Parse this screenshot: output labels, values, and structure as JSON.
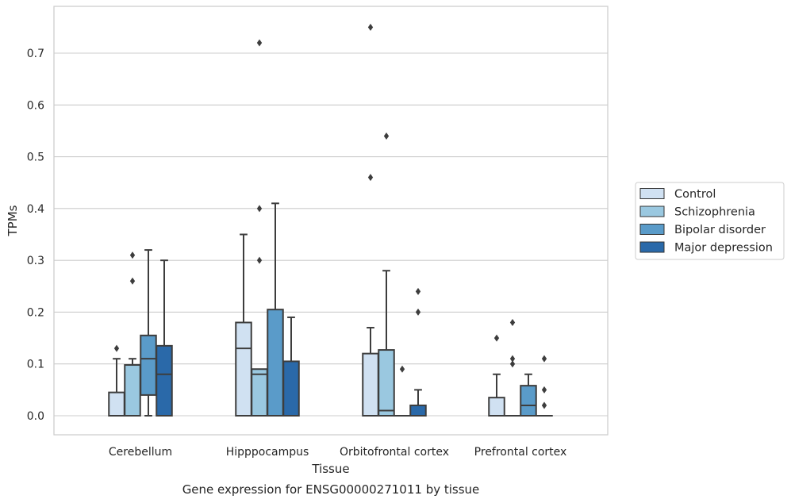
{
  "chart_data": {
    "type": "boxplot",
    "title": "",
    "caption": "Gene expression for ENSG00000271011 by tissue",
    "xlabel": "Tissue",
    "ylabel": "TPMs",
    "ylim": [
      -0.037,
      0.79
    ],
    "yticks": [
      "0.0",
      "0.1",
      "0.2",
      "0.3",
      "0.4",
      "0.5",
      "0.6",
      "0.7"
    ],
    "grid": "horizontal",
    "legend_position": "right",
    "categories": [
      "Cerebellum",
      "Hipppocampus",
      "Orbitofrontal cortex",
      "Prefrontal cortex"
    ],
    "series": [
      {
        "name": "Control",
        "color": "#d0e1f2",
        "boxes": [
          {
            "whisker_low": 0,
            "q1": 0,
            "median": 0,
            "q3": 0.045,
            "whisker_high": 0.11,
            "outliers": [
              0.13
            ]
          },
          {
            "whisker_low": 0,
            "q1": 0,
            "median": 0.13,
            "q3": 0.18,
            "whisker_high": 0.35,
            "outliers": []
          },
          {
            "whisker_low": 0,
            "q1": 0,
            "median": 0,
            "q3": 0.12,
            "whisker_high": 0.17,
            "outliers": [
              0.46,
              0.75
            ]
          },
          {
            "whisker_low": 0,
            "q1": 0,
            "median": 0,
            "q3": 0.035,
            "whisker_high": 0.08,
            "outliers": [
              0.15
            ]
          }
        ]
      },
      {
        "name": "Schizophrenia",
        "color": "#9ac8e0",
        "boxes": [
          {
            "whisker_low": 0,
            "q1": 0,
            "median": 0,
            "q3": 0.098,
            "whisker_high": 0.11,
            "outliers": [
              0.26,
              0.31
            ]
          },
          {
            "whisker_low": 0,
            "q1": 0,
            "median": 0.08,
            "q3": 0.09,
            "whisker_high": 0.09,
            "outliers": [
              0.3,
              0.4,
              0.72
            ]
          },
          {
            "whisker_low": 0,
            "q1": 0,
            "median": 0.01,
            "q3": 0.127,
            "whisker_high": 0.28,
            "outliers": [
              0.54
            ]
          },
          {
            "whisker_low": 0,
            "q1": 0,
            "median": 0,
            "q3": 0,
            "whisker_high": 0,
            "outliers": [
              0.1,
              0.11,
              0.18
            ]
          }
        ]
      },
      {
        "name": "Bipolar disorder",
        "color": "#5a9bc9",
        "boxes": [
          {
            "whisker_low": 0,
            "q1": 0.04,
            "median": 0.11,
            "q3": 0.155,
            "whisker_high": 0.32,
            "outliers": []
          },
          {
            "whisker_low": 0,
            "q1": 0,
            "median": 0,
            "q3": 0.205,
            "whisker_high": 0.41,
            "outliers": []
          },
          {
            "whisker_low": 0,
            "q1": 0,
            "median": 0,
            "q3": 0,
            "whisker_high": 0,
            "outliers": [
              0.09
            ]
          },
          {
            "whisker_low": 0,
            "q1": 0,
            "median": 0.02,
            "q3": 0.058,
            "whisker_high": 0.08,
            "outliers": []
          }
        ]
      },
      {
        "name": "Major depression",
        "color": "#2a69a9",
        "boxes": [
          {
            "whisker_low": 0,
            "q1": 0,
            "median": 0.08,
            "q3": 0.135,
            "whisker_high": 0.3,
            "outliers": []
          },
          {
            "whisker_low": 0,
            "q1": 0,
            "median": 0,
            "q3": 0.105,
            "whisker_high": 0.19,
            "outliers": []
          },
          {
            "whisker_low": 0,
            "q1": 0,
            "median": 0,
            "q3": 0.02,
            "whisker_high": 0.05,
            "outliers": [
              0.2,
              0.24
            ]
          },
          {
            "whisker_low": 0,
            "q1": 0,
            "median": 0,
            "q3": 0,
            "whisker_high": 0,
            "outliers": [
              0.02,
              0.05,
              0.11
            ]
          }
        ]
      }
    ]
  }
}
